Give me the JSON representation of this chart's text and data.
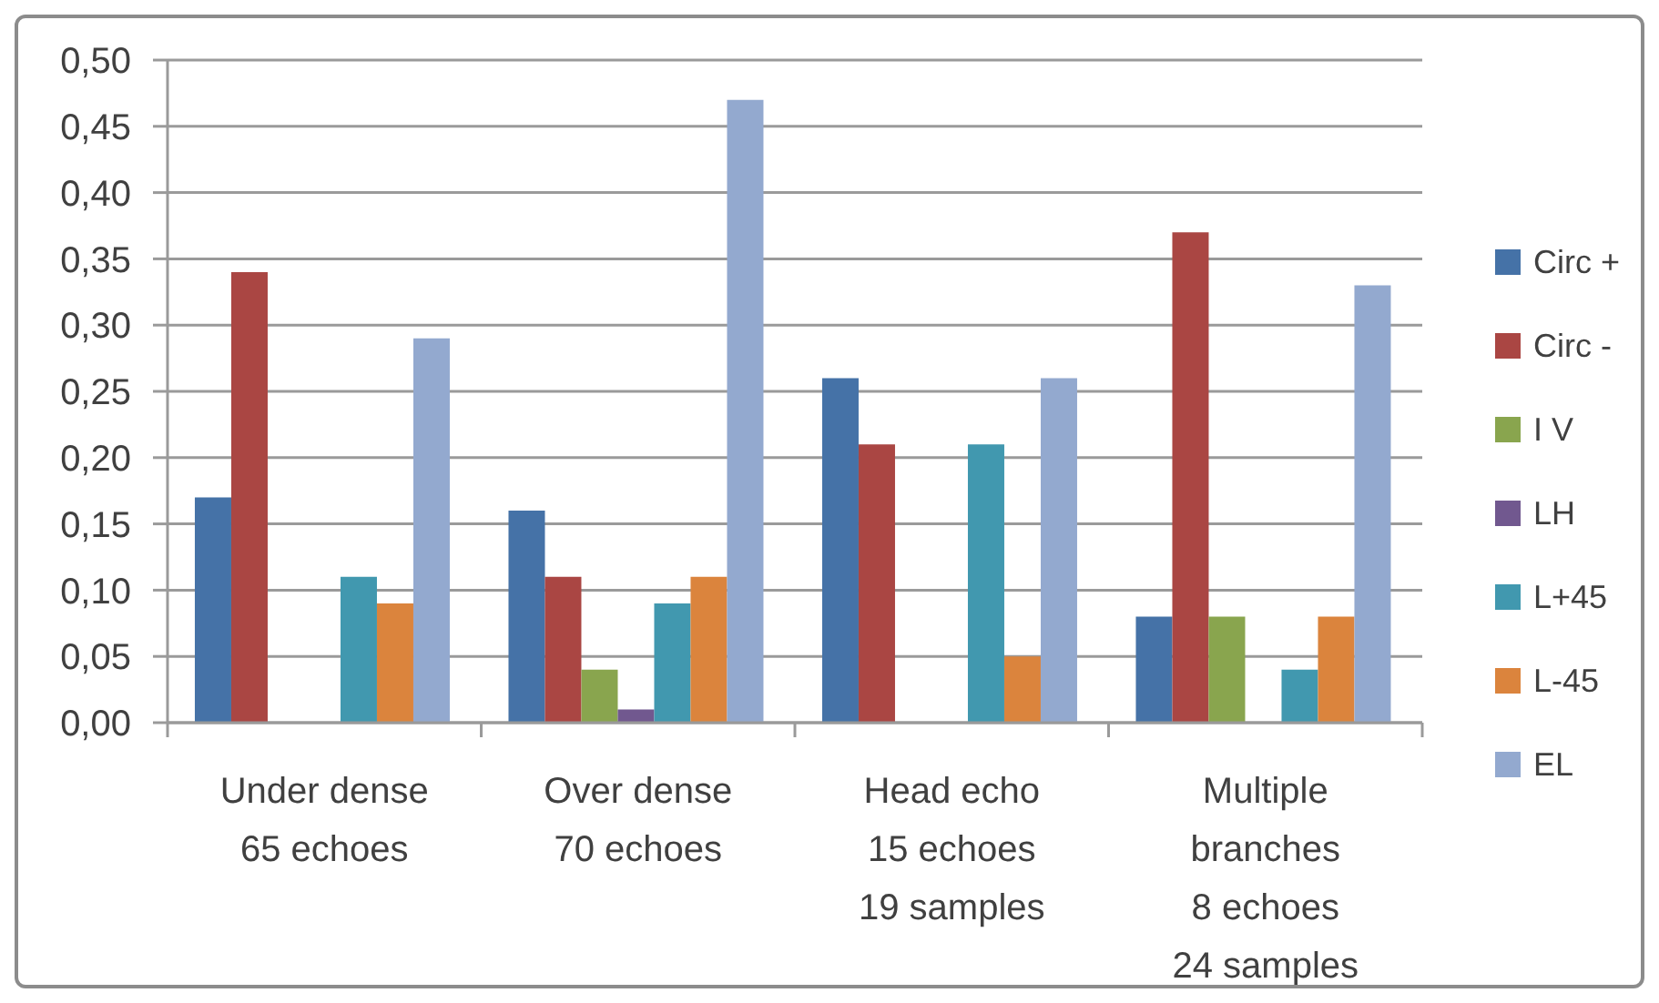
{
  "chart_data": {
    "type": "bar",
    "categories": [
      "Under dense\n65 echoes",
      "Over dense\n70 echoes",
      "Head echo\n15 echoes\n19 samples",
      "Multiple\nbranches\n8 echoes\n24 samples"
    ],
    "series": [
      {
        "name": "Circ +",
        "color": "#4572a7",
        "values": [
          0.17,
          0.16,
          0.26,
          0.08
        ]
      },
      {
        "name": "Circ -",
        "color": "#aa4643",
        "values": [
          0.34,
          0.11,
          0.21,
          0.37
        ]
      },
      {
        "name": "I V",
        "color": "#89a54e",
        "values": [
          0,
          0.04,
          0,
          0.08
        ]
      },
      {
        "name": "LH",
        "color": "#71588f",
        "values": [
          0,
          0.01,
          0,
          0
        ]
      },
      {
        "name": "L+45",
        "color": "#4198af",
        "values": [
          0.11,
          0.09,
          0.21,
          0.04
        ]
      },
      {
        "name": "L-45",
        "color": "#db843d",
        "values": [
          0.09,
          0.11,
          0.05,
          0.08
        ]
      },
      {
        "name": "EL",
        "color": "#93a9cf",
        "values": [
          0.29,
          0.47,
          0.26,
          0.33
        ]
      }
    ],
    "ylim": [
      0,
      0.5
    ],
    "yticks": [
      {
        "value": 0,
        "label": "0,00"
      },
      {
        "value": 0.05,
        "label": "0,05"
      },
      {
        "value": 0.1,
        "label": "0,10"
      },
      {
        "value": 0.15,
        "label": "0,15"
      },
      {
        "value": 0.2,
        "label": "0,20"
      },
      {
        "value": 0.25,
        "label": "0,25"
      },
      {
        "value": 0.3,
        "label": "0,30"
      },
      {
        "value": 0.35,
        "label": "0,35"
      },
      {
        "value": 0.4,
        "label": "0,40"
      },
      {
        "value": 0.45,
        "label": "0,45"
      },
      {
        "value": 0.5,
        "label": "0,50"
      }
    ],
    "grid": "y",
    "legend": "right"
  }
}
